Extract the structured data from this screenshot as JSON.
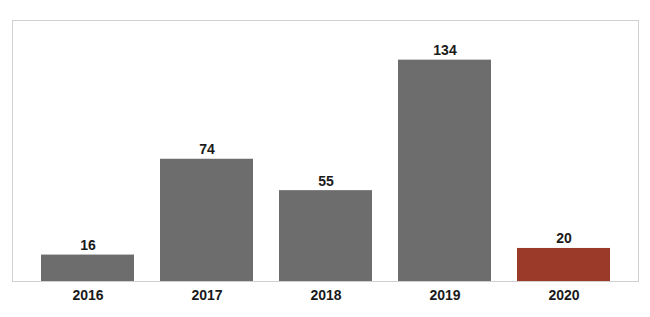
{
  "chart_data": {
    "type": "bar",
    "categories": [
      "2016",
      "2017",
      "2018",
      "2019",
      "2020"
    ],
    "values": [
      16,
      74,
      55,
      134,
      20
    ],
    "colors": [
      "#6d6d6d",
      "#6d6d6d",
      "#6d6d6d",
      "#6d6d6d",
      "#9B3A28"
    ],
    "ylim": [
      0,
      158
    ],
    "data_labels": true,
    "tick_labels": "x",
    "grid": false
  }
}
